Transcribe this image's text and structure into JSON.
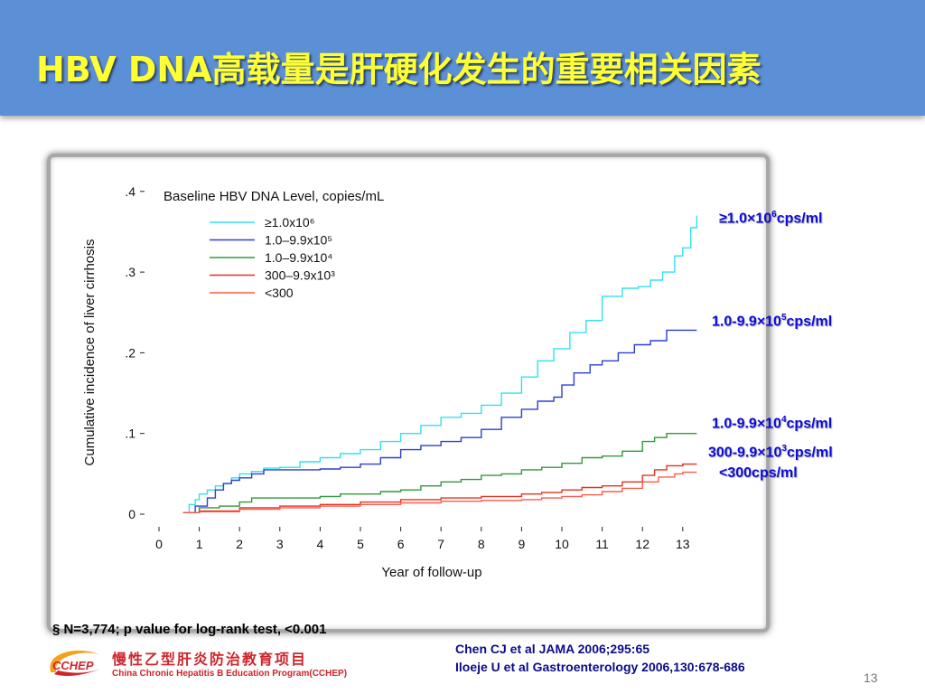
{
  "slide": {
    "title": "HBV DNA高载量是肝硬化发生的重要相关因素",
    "page_number": "13"
  },
  "colors": {
    "header_bg": "#5b8fd6",
    "title_text": "#ffff33",
    "label_text": "#0b0bd9"
  },
  "series_labels": [
    {
      "main": "≥1.0×10",
      "sup": "6",
      "unit": "cps/ml"
    },
    {
      "main": "1.0-9.9×10",
      "sup": "5",
      "unit": "cps/ml"
    },
    {
      "main": "1.0-9.9×10",
      "sup": "4",
      "unit": "cps/ml"
    },
    {
      "main": "300-9.9×10",
      "sup": "3",
      "unit": "cps/ml"
    },
    {
      "main": "<300cps/ml",
      "sup": "",
      "unit": ""
    }
  ],
  "footnote": "§  N=3,774; p value for log-rank test, <0.001",
  "references": [
    "Chen CJ et al JAMA 2006;295:65",
    "Iloeje U et al Gastroenterology 2006,130:678-686"
  ],
  "logo": {
    "text": "CCHEP",
    "cn": "慢性乙型肝炎防治教育项目",
    "en": "China Chronic Hepatitis B Education Program(CCHEP)"
  },
  "chart_data": {
    "type": "line",
    "title": "",
    "legend_title": "Baseline HBV DNA Level, copies/mL",
    "legend_position": "top-left",
    "xlabel": "Year of follow-up",
    "ylabel": "Cumulative incidence of liver cirrhosis",
    "xlim": [
      0,
      13.5
    ],
    "ylim": [
      0,
      0.4
    ],
    "xticks": [
      0,
      1,
      2,
      3,
      4,
      5,
      6,
      7,
      8,
      9,
      10,
      11,
      12,
      13
    ],
    "yticks": [
      0,
      0.1,
      0.2,
      0.3,
      0.4
    ],
    "ytick_labels": [
      "0",
      ".1",
      ".2",
      ".3",
      ".4"
    ],
    "grid": false,
    "series": [
      {
        "name": "≥1.0x10⁶",
        "color": "#33e0f0",
        "x": [
          0.6,
          0.75,
          0.9,
          1.0,
          1.2,
          1.4,
          1.6,
          1.8,
          2.0,
          2.3,
          2.6,
          3.0,
          3.5,
          4.0,
          4.5,
          5.0,
          5.5,
          6.0,
          6.5,
          7.0,
          7.5,
          8.0,
          8.5,
          9.0,
          9.4,
          9.8,
          10.2,
          10.6,
          11.0,
          11.5,
          11.9,
          12.2,
          12.5,
          12.8,
          13.0,
          13.2,
          13.35
        ],
        "y": [
          0.002,
          0.012,
          0.018,
          0.025,
          0.03,
          0.035,
          0.038,
          0.045,
          0.05,
          0.053,
          0.057,
          0.058,
          0.065,
          0.07,
          0.075,
          0.08,
          0.09,
          0.1,
          0.11,
          0.12,
          0.125,
          0.135,
          0.15,
          0.17,
          0.19,
          0.205,
          0.225,
          0.24,
          0.27,
          0.28,
          0.282,
          0.29,
          0.3,
          0.32,
          0.33,
          0.355,
          0.37
        ]
      },
      {
        "name": "1.0–9.9x10⁵",
        "color": "#2c3fd6",
        "x": [
          0.6,
          0.9,
          1.2,
          1.4,
          1.6,
          1.8,
          2.0,
          2.3,
          2.6,
          3.0,
          3.5,
          4.0,
          4.5,
          5.0,
          5.5,
          6.0,
          6.5,
          7.0,
          7.5,
          8.0,
          8.5,
          9.0,
          9.4,
          9.8,
          10.0,
          10.3,
          10.7,
          11.0,
          11.4,
          11.8,
          12.2,
          12.6,
          13.0,
          13.35
        ],
        "y": [
          0.002,
          0.01,
          0.02,
          0.03,
          0.038,
          0.042,
          0.045,
          0.05,
          0.055,
          0.055,
          0.055,
          0.056,
          0.058,
          0.062,
          0.07,
          0.08,
          0.085,
          0.09,
          0.095,
          0.105,
          0.12,
          0.13,
          0.14,
          0.145,
          0.16,
          0.175,
          0.185,
          0.19,
          0.2,
          0.21,
          0.215,
          0.228,
          0.228,
          0.228
        ]
      },
      {
        "name": "1.0–9.9x10⁴",
        "color": "#2e9a3a",
        "x": [
          0.6,
          1.0,
          1.5,
          2.0,
          2.3,
          2.5,
          3.0,
          3.5,
          4.0,
          4.5,
          5.0,
          5.5,
          6.0,
          6.5,
          7.0,
          7.5,
          8.0,
          8.5,
          9.0,
          9.5,
          10.0,
          10.5,
          11.0,
          11.5,
          12.0,
          12.3,
          12.6,
          13.0,
          13.35
        ],
        "y": [
          0.002,
          0.008,
          0.01,
          0.015,
          0.02,
          0.02,
          0.02,
          0.02,
          0.022,
          0.025,
          0.025,
          0.028,
          0.03,
          0.035,
          0.04,
          0.043,
          0.048,
          0.05,
          0.055,
          0.058,
          0.063,
          0.07,
          0.072,
          0.078,
          0.09,
          0.095,
          0.1,
          0.1,
          0.1
        ]
      },
      {
        "name": "300–9.9x10³",
        "color": "#e8301f",
        "x": [
          0.6,
          1.0,
          2.0,
          3.0,
          4.0,
          5.0,
          6.0,
          7.0,
          8.0,
          9.0,
          9.5,
          10.0,
          10.5,
          11.0,
          11.5,
          12.0,
          12.3,
          12.6,
          13.0,
          13.35
        ],
        "y": [
          0.002,
          0.004,
          0.008,
          0.01,
          0.012,
          0.015,
          0.018,
          0.02,
          0.022,
          0.025,
          0.027,
          0.03,
          0.033,
          0.035,
          0.04,
          0.048,
          0.055,
          0.06,
          0.062,
          0.062
        ]
      },
      {
        "name": "<300",
        "color": "#ff5a4a",
        "x": [
          0.6,
          1.0,
          2.0,
          3.0,
          4.0,
          5.0,
          6.0,
          7.0,
          8.0,
          9.0,
          9.5,
          10.0,
          10.5,
          11.0,
          11.5,
          12.0,
          12.4,
          12.8,
          13.0,
          13.35
        ],
        "y": [
          0.002,
          0.003,
          0.006,
          0.008,
          0.01,
          0.012,
          0.014,
          0.016,
          0.017,
          0.018,
          0.02,
          0.022,
          0.024,
          0.028,
          0.032,
          0.04,
          0.046,
          0.05,
          0.052,
          0.052
        ]
      }
    ]
  }
}
